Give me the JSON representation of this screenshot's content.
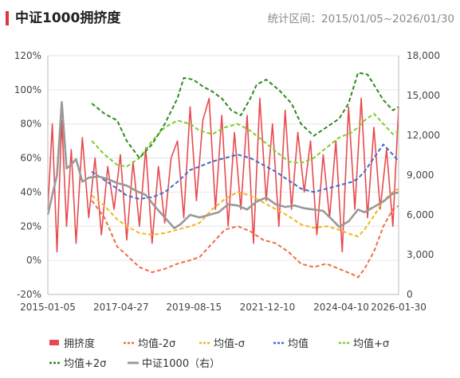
{
  "header": {
    "title": "中证1000拥挤度",
    "period": "统计区间：2015/01/05~2026/01/30"
  },
  "colors": {
    "crowding": "#e84a4f",
    "minus2sd": "#f26c43",
    "minus1sd": "#f5b41c",
    "mean": "#3a6fcc",
    "plus1sd": "#7ccf2c",
    "plus2sd": "#2f8a1f",
    "index": "#999999",
    "title_mark": "#d9383d"
  },
  "chart_data": {
    "type": "line",
    "x_ticks": [
      "2015-01-05",
      "2017-04-27",
      "2019-08-15",
      "2021-12-10",
      "2024-04-10",
      "2026-01-30"
    ],
    "x_tick_years": [
      2015.01,
      2017.32,
      2019.62,
      2021.94,
      2024.27,
      2026.08
    ],
    "x_range": [
      2015.01,
      2026.08
    ],
    "y_left": {
      "ticks": [
        "-20%",
        "0%",
        "20%",
        "40%",
        "60%",
        "80%",
        "100%",
        "120%"
      ],
      "range": [
        -0.2,
        1.2
      ]
    },
    "y_right": {
      "ticks": [
        "0",
        "3,000",
        "6,000",
        "9,000",
        "12,000",
        "15,000",
        "18,000"
      ],
      "range": [
        0,
        18000
      ]
    },
    "legend": [
      {
        "key": "crowding",
        "label": "拥挤度",
        "style": "bar"
      },
      {
        "key": "minus2sd",
        "label": "均值-2σ",
        "style": "dashed"
      },
      {
        "key": "minus1sd",
        "label": "均值-σ",
        "style": "dashed"
      },
      {
        "key": "mean",
        "label": "均值",
        "style": "dashed"
      },
      {
        "key": "plus1sd",
        "label": "均值+σ",
        "style": "dashed"
      },
      {
        "key": "plus2sd",
        "label": "均值+2σ",
        "style": "dashed"
      },
      {
        "key": "index",
        "label": "中证1000（右）",
        "style": "solid"
      }
    ],
    "series": [
      {
        "key": "crowding",
        "axis": "left",
        "x": [
          2015.01,
          2015.15,
          2015.3,
          2015.45,
          2015.6,
          2015.75,
          2015.9,
          2016.1,
          2016.3,
          2016.5,
          2016.7,
          2016.9,
          2017.1,
          2017.3,
          2017.5,
          2017.7,
          2017.9,
          2018.1,
          2018.3,
          2018.5,
          2018.7,
          2018.9,
          2019.1,
          2019.3,
          2019.5,
          2019.7,
          2019.9,
          2020.1,
          2020.3,
          2020.5,
          2020.7,
          2020.9,
          2021.1,
          2021.3,
          2021.5,
          2021.7,
          2021.9,
          2022.1,
          2022.3,
          2022.5,
          2022.7,
          2022.9,
          2023.1,
          2023.3,
          2023.5,
          2023.7,
          2023.9,
          2024.1,
          2024.3,
          2024.5,
          2024.7,
          2024.9,
          2025.1,
          2025.3,
          2025.5,
          2025.7,
          2025.9,
          2026.08
        ],
        "y": [
          0.3,
          0.8,
          0.05,
          0.82,
          0.2,
          0.65,
          0.1,
          0.72,
          0.25,
          0.6,
          0.15,
          0.55,
          0.3,
          0.62,
          0.12,
          0.58,
          0.2,
          0.66,
          0.1,
          0.55,
          0.22,
          0.6,
          0.7,
          0.25,
          0.9,
          0.35,
          0.82,
          0.95,
          0.3,
          0.85,
          0.2,
          0.75,
          0.3,
          0.85,
          0.1,
          0.95,
          0.35,
          0.8,
          0.2,
          0.88,
          0.3,
          0.75,
          0.4,
          0.7,
          0.15,
          0.62,
          0.25,
          0.7,
          0.05,
          0.9,
          0.3,
          0.95,
          0.25,
          0.78,
          0.3,
          0.65,
          0.2,
          0.9
        ]
      },
      {
        "key": "minus2sd",
        "axis": "left",
        "x": [
          2016.4,
          2016.8,
          2017.2,
          2017.5,
          2017.9,
          2018.3,
          2018.7,
          2019.1,
          2019.5,
          2019.8,
          2020.2,
          2020.6,
          2021.0,
          2021.4,
          2021.8,
          2022.2,
          2022.6,
          2023.0,
          2023.4,
          2023.8,
          2024.2,
          2024.6,
          2024.8,
          2025.0,
          2025.3,
          2025.6,
          2025.9,
          2026.08
        ],
        "y": [
          0.35,
          0.25,
          0.08,
          0.03,
          -0.04,
          -0.07,
          -0.05,
          -0.02,
          0.0,
          0.02,
          0.1,
          0.18,
          0.2,
          0.17,
          0.12,
          0.1,
          0.05,
          -0.02,
          -0.04,
          -0.02,
          -0.05,
          -0.08,
          -0.1,
          -0.05,
          0.05,
          0.2,
          0.3,
          0.32
        ]
      },
      {
        "key": "minus1sd",
        "axis": "left",
        "x": [
          2016.4,
          2016.8,
          2017.2,
          2017.5,
          2017.9,
          2018.3,
          2018.7,
          2019.1,
          2019.5,
          2019.8,
          2020.2,
          2020.6,
          2021.0,
          2021.4,
          2021.8,
          2022.2,
          2022.6,
          2023.0,
          2023.4,
          2023.8,
          2024.2,
          2024.6,
          2024.8,
          2025.0,
          2025.3,
          2025.6,
          2025.9,
          2026.08
        ],
        "y": [
          0.38,
          0.32,
          0.24,
          0.2,
          0.16,
          0.15,
          0.16,
          0.18,
          0.2,
          0.22,
          0.3,
          0.36,
          0.4,
          0.38,
          0.34,
          0.3,
          0.26,
          0.21,
          0.19,
          0.2,
          0.18,
          0.15,
          0.14,
          0.18,
          0.26,
          0.35,
          0.4,
          0.42
        ]
      },
      {
        "key": "mean",
        "axis": "left",
        "x": [
          2016.4,
          2016.8,
          2017.2,
          2017.5,
          2017.9,
          2018.3,
          2018.7,
          2019.1,
          2019.5,
          2019.8,
          2020.2,
          2020.6,
          2021.0,
          2021.4,
          2021.8,
          2022.2,
          2022.6,
          2023.0,
          2023.4,
          2023.8,
          2024.2,
          2024.6,
          2024.8,
          2025.0,
          2025.3,
          2025.6,
          2025.9,
          2026.08
        ],
        "y": [
          0.52,
          0.47,
          0.42,
          0.38,
          0.36,
          0.37,
          0.4,
          0.46,
          0.53,
          0.55,
          0.58,
          0.6,
          0.62,
          0.6,
          0.56,
          0.52,
          0.47,
          0.42,
          0.4,
          0.42,
          0.44,
          0.46,
          0.48,
          0.52,
          0.6,
          0.68,
          0.62,
          0.58
        ]
      },
      {
        "key": "plus1sd",
        "axis": "left",
        "x": [
          2016.4,
          2016.8,
          2017.2,
          2017.5,
          2017.9,
          2018.3,
          2018.7,
          2019.1,
          2019.5,
          2019.8,
          2020.2,
          2020.6,
          2021.0,
          2021.4,
          2021.8,
          2022.2,
          2022.6,
          2023.0,
          2023.4,
          2023.8,
          2024.2,
          2024.6,
          2024.8,
          2025.0,
          2025.3,
          2025.6,
          2025.9,
          2026.08
        ],
        "y": [
          0.7,
          0.62,
          0.56,
          0.55,
          0.6,
          0.7,
          0.78,
          0.82,
          0.8,
          0.76,
          0.74,
          0.78,
          0.8,
          0.76,
          0.7,
          0.64,
          0.58,
          0.57,
          0.6,
          0.66,
          0.72,
          0.75,
          0.78,
          0.82,
          0.86,
          0.8,
          0.74,
          0.76
        ]
      },
      {
        "key": "plus2sd",
        "axis": "left",
        "x": [
          2016.4,
          2016.8,
          2017.2,
          2017.5,
          2017.9,
          2018.3,
          2018.7,
          2019.1,
          2019.3,
          2019.6,
          2019.9,
          2020.2,
          2020.5,
          2020.8,
          2021.1,
          2021.4,
          2021.6,
          2021.9,
          2022.3,
          2022.7,
          2023.0,
          2023.4,
          2023.8,
          2024.2,
          2024.5,
          2024.8,
          2025.1,
          2025.3,
          2025.6,
          2025.9,
          2026.08
        ],
        "y": [
          0.92,
          0.86,
          0.82,
          0.7,
          0.6,
          0.68,
          0.8,
          0.95,
          1.07,
          1.06,
          1.02,
          0.99,
          0.95,
          0.88,
          0.85,
          0.95,
          1.03,
          1.06,
          1.0,
          0.92,
          0.8,
          0.73,
          0.78,
          0.83,
          0.92,
          1.1,
          1.09,
          1.03,
          0.94,
          0.88,
          0.9
        ]
      },
      {
        "key": "index",
        "axis": "right",
        "x": [
          2015.01,
          2015.15,
          2015.3,
          2015.45,
          2015.6,
          2015.75,
          2015.9,
          2016.1,
          2016.3,
          2016.6,
          2016.9,
          2017.2,
          2017.5,
          2017.8,
          2018.1,
          2018.4,
          2018.7,
          2019.0,
          2019.2,
          2019.5,
          2019.8,
          2020.1,
          2020.4,
          2020.7,
          2021.0,
          2021.3,
          2021.6,
          2021.9,
          2022.2,
          2022.5,
          2022.8,
          2023.1,
          2023.4,
          2023.7,
          2024.0,
          2024.2,
          2024.5,
          2024.8,
          2025.0,
          2025.3,
          2025.6,
          2025.9,
          2026.08
        ],
        "y": [
          6000,
          7500,
          9000,
          14500,
          9500,
          9800,
          10200,
          8500,
          8800,
          8900,
          8700,
          8400,
          8200,
          7800,
          7500,
          6600,
          5800,
          5000,
          5300,
          6000,
          5800,
          6000,
          6200,
          6800,
          6700,
          6400,
          7000,
          7300,
          6800,
          6600,
          6700,
          6500,
          6400,
          6300,
          5600,
          5100,
          5500,
          6400,
          6200,
          6600,
          7000,
          7600,
          7700
        ]
      }
    ]
  }
}
